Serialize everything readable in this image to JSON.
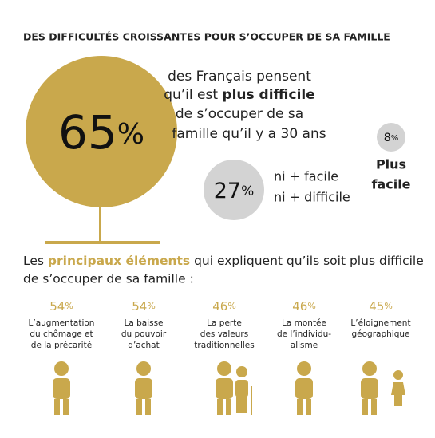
{
  "title": "DES DIFFICULTÉS CROISSANTES POUR S’OCCUPER DE SA FAMILLE",
  "main": {
    "number": "65",
    "unit": "%",
    "line1": "des Français pensent",
    "line2": {
      "plain": "qu’il est ",
      "bold": "plus difficile"
    },
    "line3": "de s’occuper de sa",
    "line4": "famille qu’il y a 30 ans"
  },
  "neutral": {
    "number": "27",
    "unit": "%",
    "lines": [
      "ni + facile",
      "ni + difficile"
    ]
  },
  "easier": {
    "number": "8",
    "unit": "%",
    "lines": [
      "Plus",
      "facile"
    ]
  },
  "subtitle": {
    "before": "Les ",
    "highlight": "principaux éléments",
    "after": " qui expliquent qu’ils soit plus difficile",
    "line2": "de s’occuper de sa famille :"
  },
  "reasons": [
    {
      "number": "54",
      "unit": "%",
      "lines": [
        "L’augmentation",
        "du chômage et",
        "de la précarité"
      ]
    },
    {
      "number": "54",
      "unit": "%",
      "lines": [
        "La baisse",
        "du pouvoir",
        "d’achat"
      ]
    },
    {
      "number": "46",
      "unit": "%",
      "lines": [
        "La perte",
        "des valeurs",
        "traditionnelles"
      ]
    },
    {
      "number": "46",
      "unit": "%",
      "lines": [
        "La montée",
        "de l’individu-",
        "alisme"
      ]
    },
    {
      "number": "45",
      "unit": "%",
      "lines": [
        "L’éloignement",
        "géographique"
      ]
    }
  ]
}
